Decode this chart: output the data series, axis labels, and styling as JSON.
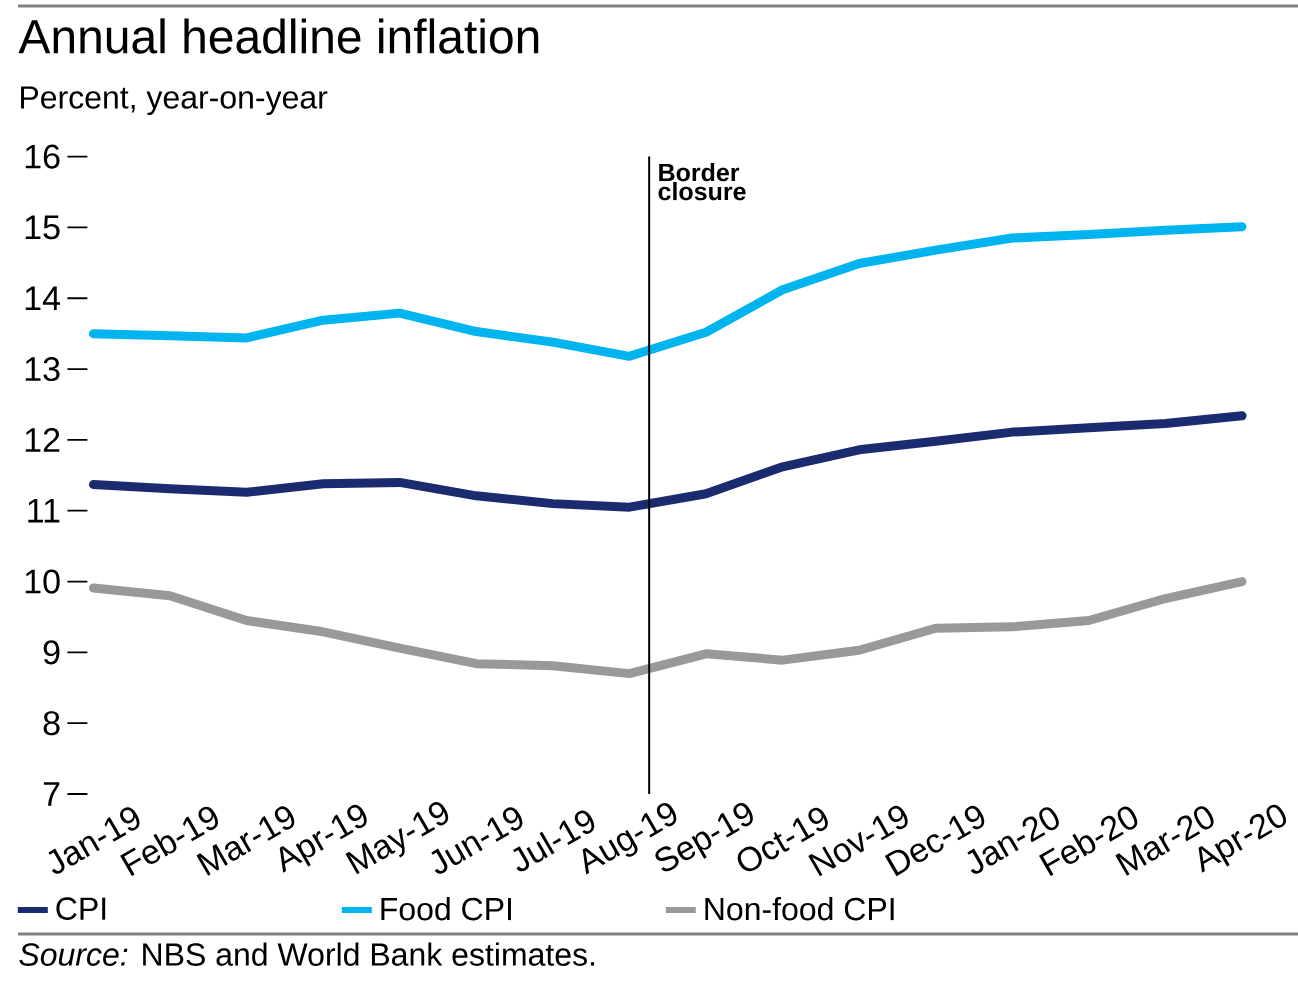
{
  "chart_data": {
    "type": "line",
    "title": "Annual headline inflation",
    "subtitle": "Percent, year-on-year",
    "x": [
      "2019-01",
      "2019-02",
      "2019-03",
      "2019-04",
      "2019-05",
      "2019-06",
      "2019-07",
      "2019-08",
      "2019-09",
      "2019-10",
      "2019-11",
      "2019-12",
      "2020-01",
      "2020-02",
      "2020-03",
      "2020-04"
    ],
    "series": [
      {
        "name": "CPI",
        "color": "#1b2b6f",
        "values": [
          11.37,
          11.31,
          11.26,
          11.38,
          11.4,
          11.21,
          11.1,
          11.05,
          11.24,
          11.62,
          11.86,
          11.98,
          12.11,
          12.17,
          12.23,
          12.34
        ]
      },
      {
        "name": "Food CPI",
        "color": "#00b4f0",
        "values": [
          13.5,
          13.47,
          13.44,
          13.69,
          13.79,
          13.53,
          13.38,
          13.18,
          13.52,
          14.12,
          14.49,
          14.68,
          14.85,
          14.9,
          14.96,
          15.01
        ]
      },
      {
        "name": "Non-food CPI",
        "color": "#999999",
        "values": [
          9.91,
          9.8,
          9.45,
          9.29,
          9.06,
          8.84,
          8.81,
          8.7,
          8.98,
          8.89,
          9.03,
          9.34,
          9.36,
          9.45,
          9.76,
          10.0
        ]
      }
    ],
    "xlim": [
      "2019-01",
      "2020-04"
    ],
    "xticks": [
      {
        "value": "2019-01",
        "label": "Jan-19"
      },
      {
        "value": "2019-02",
        "label": "Feb-19"
      },
      {
        "value": "2019-03",
        "label": "Mar-19"
      },
      {
        "value": "2019-04",
        "label": "Apr-19"
      },
      {
        "value": "2019-05",
        "label": "May-19"
      },
      {
        "value": "2019-06",
        "label": "Jun-19"
      },
      {
        "value": "2019-07",
        "label": "Jul-19"
      },
      {
        "value": "2019-08",
        "label": "Aug-19"
      },
      {
        "value": "2019-09",
        "label": "Sep-19"
      },
      {
        "value": "2019-10",
        "label": "Oct-19"
      },
      {
        "value": "2019-11",
        "label": "Nov-19"
      },
      {
        "value": "2019-12",
        "label": "Dec-19"
      },
      {
        "value": "2020-01",
        "label": "Jan-20"
      },
      {
        "value": "2020-02",
        "label": "Feb-20"
      },
      {
        "value": "2020-03",
        "label": "Mar-20"
      },
      {
        "value": "2020-04",
        "label": "Apr-20"
      }
    ],
    "ylim": [
      7,
      16
    ],
    "yticks": [
      7,
      8,
      9,
      10,
      11,
      12,
      13,
      14,
      15,
      16
    ],
    "ref_lines": [
      {
        "axis": "x",
        "value": "2019-08-09",
        "label": "Border closure",
        "color": "#000000"
      }
    ],
    "legend": "bottom",
    "annotations": [
      "*Source:* NBS and World Bank estimates."
    ]
  }
}
